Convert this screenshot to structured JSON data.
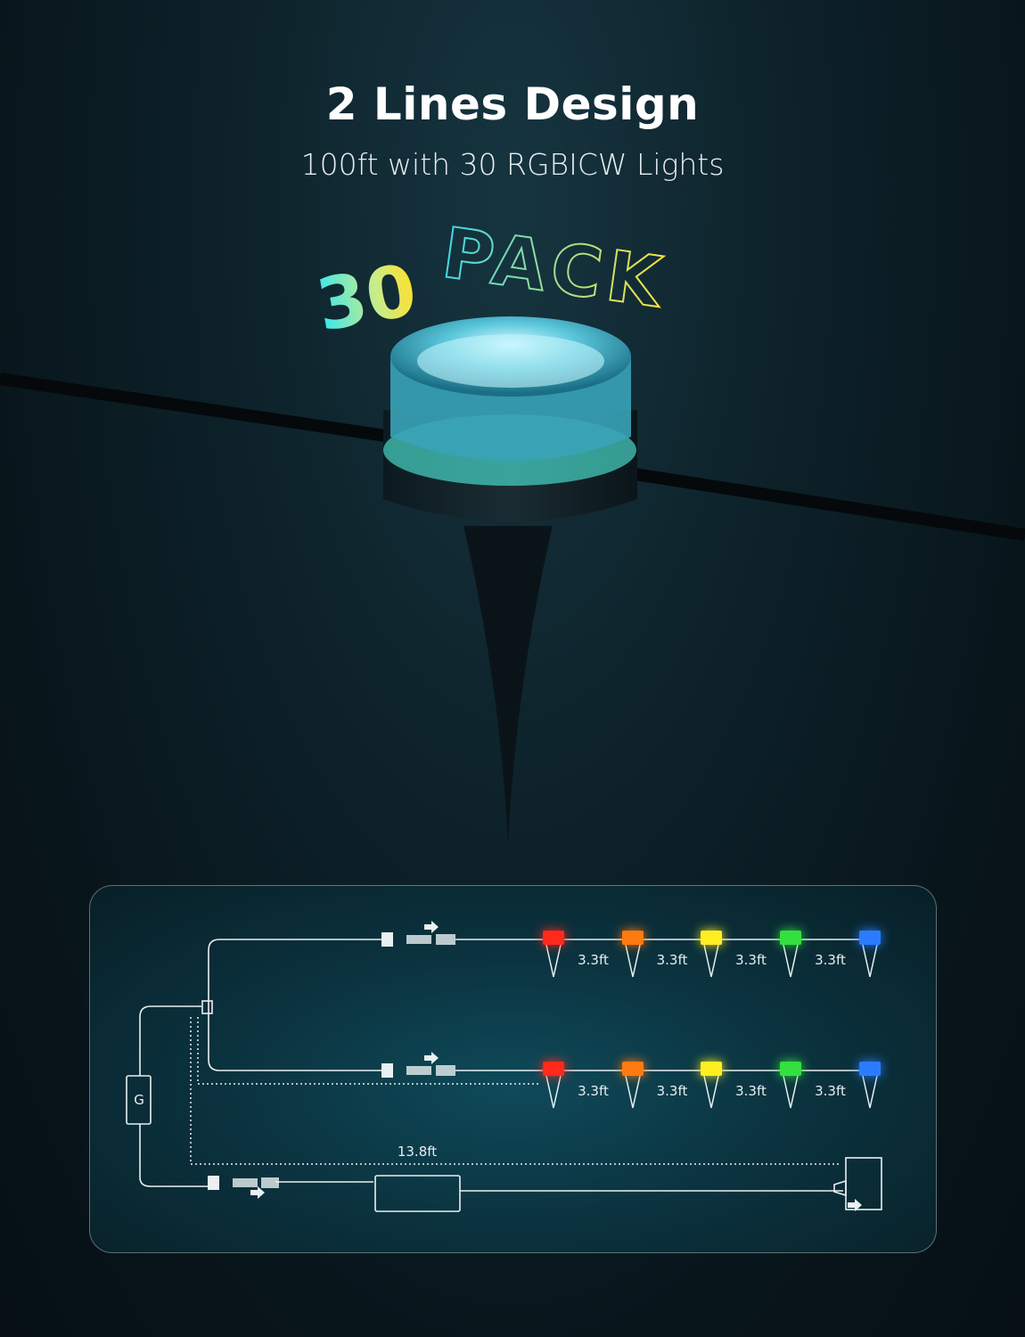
{
  "header": {
    "title": "2 Lines Design",
    "subtitle": "100ft with 30 RGBICW Lights"
  },
  "badge": {
    "number": "30",
    "word": "PACK"
  },
  "diagram": {
    "light_colors": [
      "#ff2a1a",
      "#ff7a10",
      "#ffee22",
      "#33e040",
      "#2a7cff"
    ],
    "spacing_label": "3.3ft",
    "power_cable_label": "13.8ft",
    "controller_label": "G"
  }
}
